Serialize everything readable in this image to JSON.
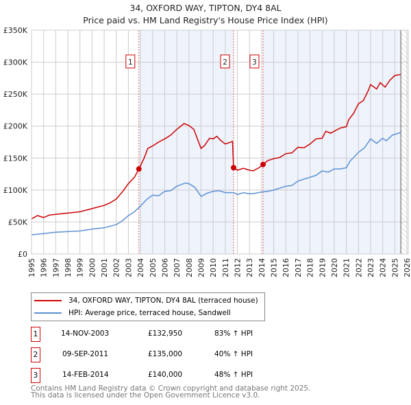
{
  "chart_data": {
    "type": "line",
    "title": "34, OXFORD WAY, TIPTON, DY4 8AL",
    "subtitle": "Price paid vs. HM Land Registry's House Price Index (HPI)",
    "xlim": [
      1995,
      2026
    ],
    "ylim": [
      0,
      350000
    ],
    "x_ticks": [
      "1995",
      "1996",
      "1997",
      "1998",
      "1999",
      "2000",
      "2001",
      "2002",
      "2003",
      "2004",
      "2005",
      "2006",
      "2007",
      "2008",
      "2009",
      "2010",
      "2011",
      "2012",
      "2013",
      "2014",
      "2015",
      "2016",
      "2017",
      "2018",
      "2019",
      "2020",
      "2021",
      "2022",
      "2023",
      "2024",
      "2025",
      "2026"
    ],
    "y_ticks": [
      {
        "v": 0,
        "label": "£0"
      },
      {
        "v": 50000,
        "label": "£50K"
      },
      {
        "v": 100000,
        "label": "£100K"
      },
      {
        "v": 150000,
        "label": "£150K"
      },
      {
        "v": 200000,
        "label": "£200K"
      },
      {
        "v": 250000,
        "label": "£250K"
      },
      {
        "v": 300000,
        "label": "£300K"
      },
      {
        "v": 350000,
        "label": "£350K"
      }
    ],
    "grid": true,
    "colors": {
      "property": "#cc0000",
      "hpi": "#5b8fd4",
      "shade": "#eef3fc",
      "marker": "#cc0000"
    },
    "series": [
      {
        "name": "34, OXFORD WAY, TIPTON, DY4 8AL (terraced house)",
        "points": [
          [
            1995,
            55
          ],
          [
            1995.5,
            60
          ],
          [
            1996,
            57
          ],
          [
            1996.5,
            61
          ],
          [
            1997,
            62
          ],
          [
            1998,
            64
          ],
          [
            1999,
            66
          ],
          [
            2000,
            71
          ],
          [
            2001,
            76
          ],
          [
            2001.5,
            80
          ],
          [
            2002,
            86
          ],
          [
            2002.5,
            97
          ],
          [
            2003,
            110
          ],
          [
            2003.5,
            120
          ],
          [
            2003.87,
            133
          ],
          [
            2004.3,
            150
          ],
          [
            2004.6,
            165
          ],
          [
            2005,
            169
          ],
          [
            2005.5,
            175
          ],
          [
            2006,
            180
          ],
          [
            2006.5,
            186
          ],
          [
            2007,
            195
          ],
          [
            2007.6,
            204
          ],
          [
            2008,
            201
          ],
          [
            2008.4,
            195
          ],
          [
            2008.7,
            180
          ],
          [
            2009,
            165
          ],
          [
            2009.3,
            170
          ],
          [
            2009.7,
            181
          ],
          [
            2010,
            180
          ],
          [
            2010.3,
            184
          ],
          [
            2010.6,
            178
          ],
          [
            2011,
            172
          ],
          [
            2011.6,
            176
          ],
          [
            2011.69,
            135
          ],
          [
            2012,
            131
          ],
          [
            2012.5,
            134
          ],
          [
            2013,
            131
          ],
          [
            2013.3,
            130
          ],
          [
            2013.8,
            135
          ],
          [
            2014.12,
            140
          ],
          [
            2014.5,
            146
          ],
          [
            2015,
            149
          ],
          [
            2015.5,
            151
          ],
          [
            2016,
            157
          ],
          [
            2016.5,
            158
          ],
          [
            2017,
            167
          ],
          [
            2017.5,
            166
          ],
          [
            2018,
            172
          ],
          [
            2018.5,
            180
          ],
          [
            2019,
            181
          ],
          [
            2019.3,
            192
          ],
          [
            2019.7,
            189
          ],
          [
            2020,
            192
          ],
          [
            2020.5,
            197
          ],
          [
            2021,
            199
          ],
          [
            2021.2,
            210
          ],
          [
            2021.6,
            220
          ],
          [
            2022,
            235
          ],
          [
            2022.4,
            240
          ],
          [
            2022.8,
            255
          ],
          [
            2023,
            265
          ],
          [
            2023.5,
            258
          ],
          [
            2023.8,
            268
          ],
          [
            2024.2,
            261
          ],
          [
            2024.6,
            272
          ],
          [
            2025,
            279
          ],
          [
            2025.5,
            281
          ]
        ]
      },
      {
        "name": "HPI: Average price, terraced house, Sandwell",
        "points": [
          [
            1995,
            30
          ],
          [
            1996,
            32
          ],
          [
            1997,
            34
          ],
          [
            1998,
            35
          ],
          [
            1999,
            36
          ],
          [
            2000,
            39
          ],
          [
            2001,
            41
          ],
          [
            2002,
            46
          ],
          [
            2002.5,
            52
          ],
          [
            2003,
            60
          ],
          [
            2003.5,
            66
          ],
          [
            2004,
            75
          ],
          [
            2004.5,
            85
          ],
          [
            2005,
            92
          ],
          [
            2005.5,
            91
          ],
          [
            2006,
            98
          ],
          [
            2006.5,
            99
          ],
          [
            2007,
            106
          ],
          [
            2007.7,
            111
          ],
          [
            2008,
            110
          ],
          [
            2008.5,
            104
          ],
          [
            2009,
            90
          ],
          [
            2009.5,
            95
          ],
          [
            2010,
            98
          ],
          [
            2010.5,
            99
          ],
          [
            2011,
            96
          ],
          [
            2011.7,
            96
          ],
          [
            2012,
            93
          ],
          [
            2012.5,
            96
          ],
          [
            2013,
            94
          ],
          [
            2013.5,
            95
          ],
          [
            2014,
            97
          ],
          [
            2014.5,
            98
          ],
          [
            2015,
            100
          ],
          [
            2016,
            106
          ],
          [
            2016.5,
            107
          ],
          [
            2017,
            114
          ],
          [
            2018,
            120
          ],
          [
            2018.5,
            123
          ],
          [
            2019,
            130
          ],
          [
            2019.5,
            128
          ],
          [
            2020,
            133
          ],
          [
            2020.5,
            133
          ],
          [
            2021,
            135
          ],
          [
            2021.3,
            145
          ],
          [
            2022,
            159
          ],
          [
            2022.5,
            166
          ],
          [
            2023,
            180
          ],
          [
            2023.5,
            173
          ],
          [
            2024,
            181
          ],
          [
            2024.3,
            177
          ],
          [
            2024.8,
            186
          ],
          [
            2025.5,
            190
          ]
        ]
      }
    ],
    "value_unit": "thousands GBP",
    "sales": [
      {
        "id": "1",
        "x": 2003.87,
        "price": 132950,
        "date": "14-NOV-2003",
        "price_label": "£132,950",
        "hpi": "83% ↑ HPI"
      },
      {
        "id": "2",
        "x": 2011.69,
        "price": 135000,
        "date": "09-SEP-2011",
        "price_label": "£135,000",
        "hpi": "40% ↑ HPI"
      },
      {
        "id": "3",
        "x": 2014.12,
        "price": 140000,
        "date": "14-FEB-2014",
        "price_label": "£140,000",
        "hpi": "48% ↑ HPI"
      }
    ],
    "shaded_ranges": [
      [
        2003.87,
        2011.69
      ],
      [
        2014.12,
        2025.5
      ]
    ],
    "hatched_from": 2025.5,
    "legend_position": "below"
  },
  "footer": {
    "line1": "Contains HM Land Registry data © Crown copyright and database right 2025.",
    "line2": "This data is licensed under the Open Government Licence v3.0."
  }
}
